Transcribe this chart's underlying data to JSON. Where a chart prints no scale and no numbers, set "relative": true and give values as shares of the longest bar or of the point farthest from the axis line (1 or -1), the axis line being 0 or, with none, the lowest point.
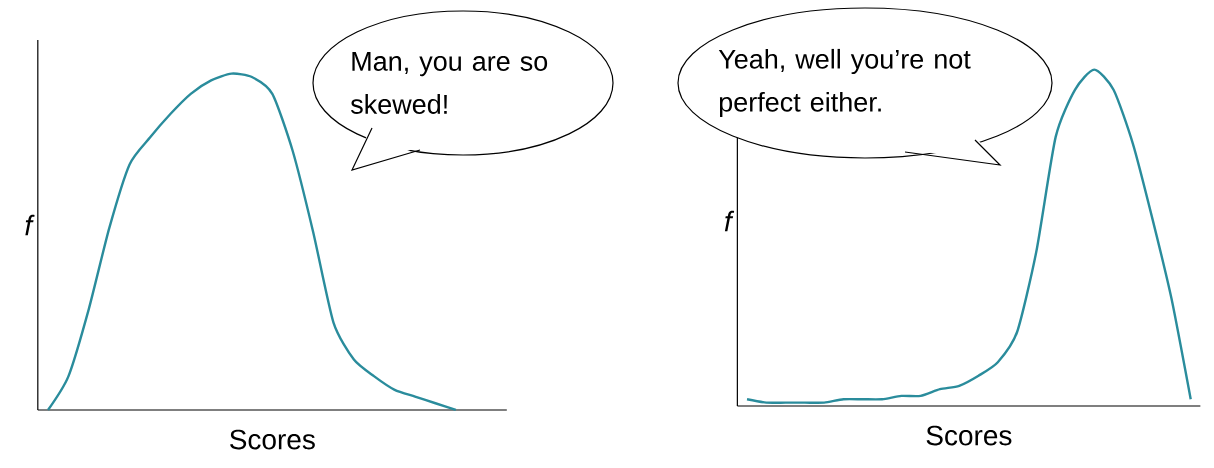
{
  "chart_data": [
    {
      "type": "line",
      "relative": true,
      "xlabel": "Scores",
      "ylabel": "f",
      "color": "#2a8c9c",
      "categories": [
        null,
        null,
        null,
        null,
        null,
        null,
        null,
        null,
        null,
        null,
        null,
        null,
        null,
        null,
        null,
        null,
        null,
        null,
        null,
        null,
        null,
        null,
        null
      ],
      "values": [
        0,
        0.1,
        0.3,
        0.54,
        0.73,
        0.81,
        0.88,
        0.94,
        0.98,
        1.0,
        0.99,
        0.94,
        0.77,
        0.53,
        0.26,
        0.15,
        0.1,
        0.06,
        0.04,
        0.02,
        0,
        null,
        null
      ],
      "annotations": [
        "Man, you are so skewed!"
      ]
    },
    {
      "type": "line",
      "relative": true,
      "xlabel": "Scores",
      "ylabel": "f",
      "color": "#2a8c9c",
      "categories": [
        null,
        null,
        null,
        null,
        null,
        null,
        null,
        null,
        null,
        null,
        null,
        null,
        null,
        null,
        null,
        null,
        null,
        null,
        null,
        null,
        null,
        null,
        null,
        null
      ],
      "values": [
        0.02,
        0.01,
        0.01,
        0.01,
        0.01,
        0.02,
        0.02,
        0.02,
        0.03,
        0.03,
        0.05,
        0.06,
        0.09,
        0.13,
        0.22,
        0.46,
        0.8,
        0.94,
        1.0,
        0.94,
        0.78,
        0.56,
        0.32,
        0.02
      ],
      "annotations": [
        "Yeah, well you’re not perfect either."
      ]
    }
  ]
}
